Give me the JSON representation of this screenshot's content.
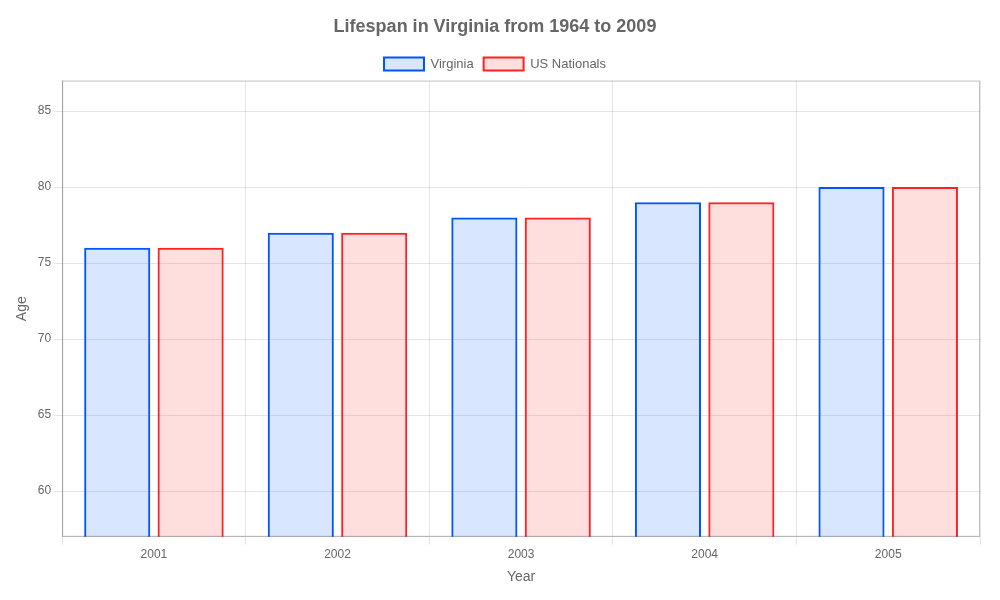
{
  "chart_data": {
    "type": "bar",
    "title": "Lifespan in Virginia from 1964 to 2009",
    "x_label": "Year",
    "y_label": "Age",
    "categories": [
      "2001",
      "2002",
      "2003",
      "2004",
      "2005"
    ],
    "series": [
      {
        "name": "Virginia",
        "color": "#0055ff",
        "values": [
          76,
          77,
          78,
          79,
          80
        ]
      },
      {
        "name": "US Nationals",
        "color": "#ff2222",
        "values": [
          76,
          77,
          78,
          79,
          80
        ]
      }
    ],
    "ylim": [
      57,
      87
    ],
    "yticks": [
      60,
      65,
      70,
      75,
      80,
      85
    ],
    "grid": true,
    "legend": "top"
  }
}
